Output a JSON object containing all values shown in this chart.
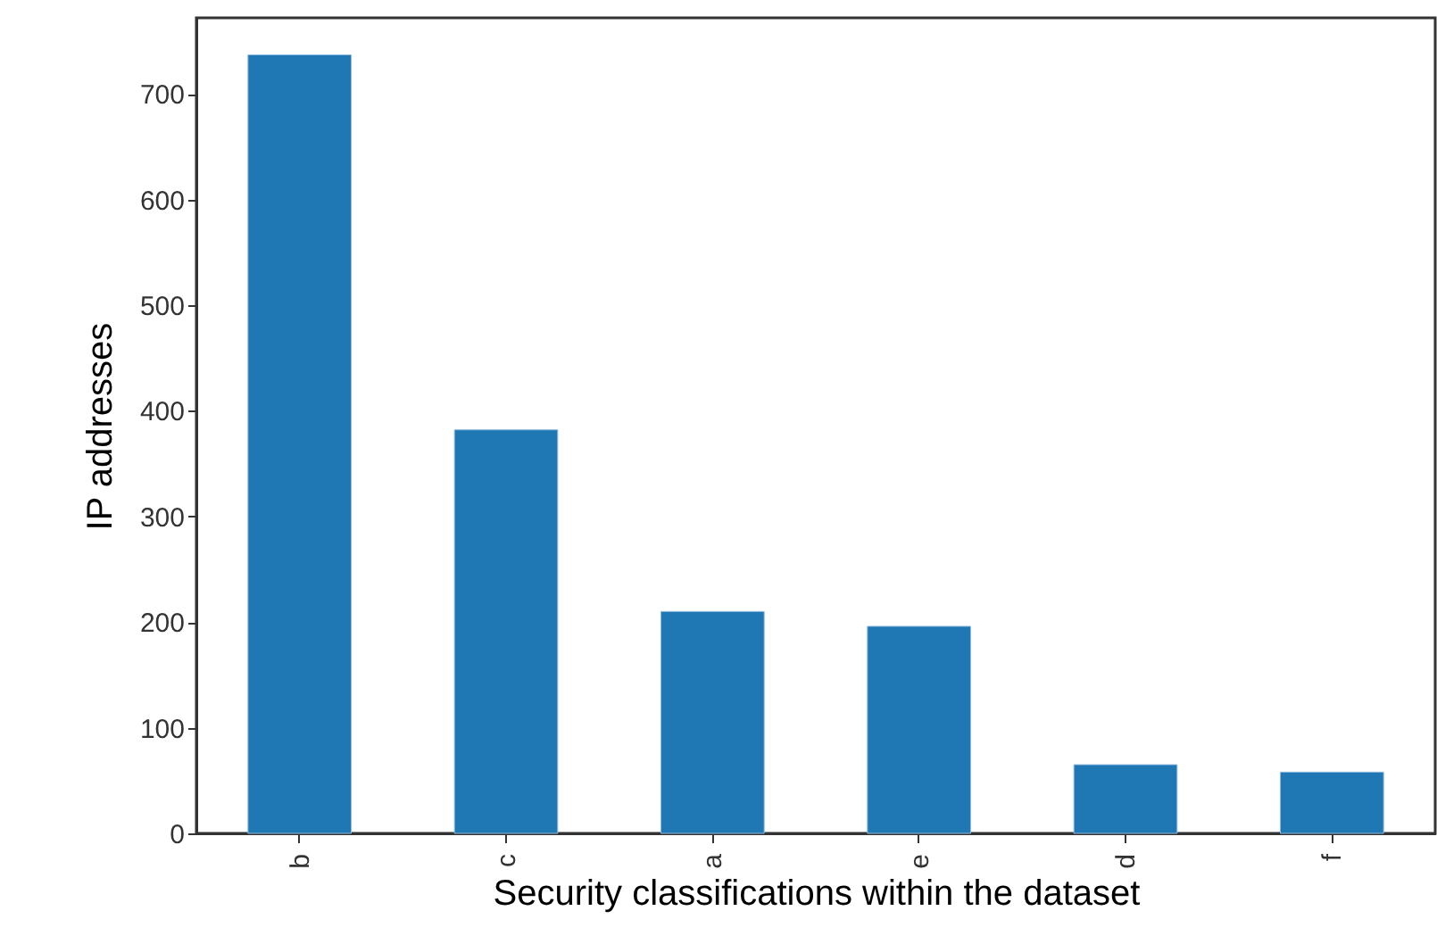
{
  "chart_data": {
    "type": "bar",
    "xlabel": "Security classifications within the dataset",
    "ylabel": "IP addresses",
    "categories": [
      "b",
      "c",
      "a",
      "e",
      "d",
      "f"
    ],
    "values": [
      737,
      382,
      210,
      196,
      65,
      58
    ],
    "color": "#1f77b4",
    "ylim": [
      0,
      772
    ],
    "yticks": [
      0,
      100,
      200,
      300,
      400,
      500,
      600,
      700
    ],
    "grid": false
  }
}
